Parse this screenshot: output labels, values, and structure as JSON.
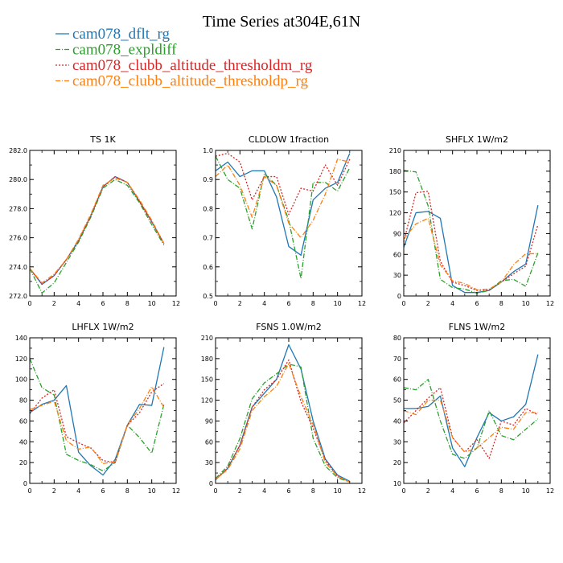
{
  "title": "Time Series at304E,61N",
  "legend": [
    {
      "label": "cam078_dflt_rg",
      "color": "#1f77b4",
      "dash": "solid"
    },
    {
      "label": "cam078_expldiff",
      "color": "#2ca02c",
      "dash": "dashdot"
    },
    {
      "label": "cam078_clubb_altitude_thresholdm_rg",
      "color": "#d62728",
      "dash": "dot"
    },
    {
      "label": "cam078_clubb_altitude_thresholdp_rg",
      "color": "#ff7f0e",
      "dash": "dashdot"
    }
  ],
  "chart_data": [
    {
      "type": "line",
      "title": "TS   1K",
      "xlim": [
        0,
        12
      ],
      "xticks": [
        0,
        2,
        4,
        6,
        8,
        10,
        12
      ],
      "ylim": [
        272,
        282
      ],
      "yticks": [
        "272.0",
        "274.0",
        "276.0",
        "278.0",
        "280.0",
        "282.0"
      ],
      "x": [
        0,
        1,
        2,
        3,
        4,
        5,
        6,
        7,
        8,
        9,
        10,
        11
      ],
      "series": [
        {
          "name": "cam078_dflt_rg",
          "values": [
            273.9,
            272.8,
            273.4,
            274.5,
            275.8,
            277.5,
            279.5,
            280.2,
            279.8,
            278.5,
            277.1,
            275.6
          ]
        },
        {
          "name": "cam078_expldiff",
          "values": [
            273.9,
            272.2,
            272.9,
            274.3,
            275.7,
            277.4,
            279.4,
            280.0,
            279.6,
            278.4,
            276.9,
            275.5
          ]
        },
        {
          "name": "cam078_clubb_altitude_thresholdm_rg",
          "values": [
            273.9,
            272.8,
            273.4,
            274.5,
            275.8,
            277.5,
            279.5,
            280.2,
            279.8,
            278.5,
            277.1,
            275.6
          ]
        },
        {
          "name": "cam078_clubb_altitude_thresholdp_rg",
          "values": [
            273.9,
            272.9,
            273.5,
            274.5,
            275.9,
            277.6,
            279.6,
            280.1,
            279.8,
            278.6,
            277.2,
            275.6
          ]
        }
      ]
    },
    {
      "type": "line",
      "title": "CLDLOW   1fraction",
      "xlim": [
        0,
        12
      ],
      "xticks": [
        0,
        2,
        4,
        6,
        8,
        10,
        12
      ],
      "ylim": [
        0.5,
        1.0
      ],
      "yticks": [
        "0.5",
        "0.6",
        "0.7",
        "0.8",
        "0.9",
        "1.0"
      ],
      "x": [
        0,
        1,
        2,
        3,
        4,
        5,
        6,
        7,
        8,
        9,
        10,
        11
      ],
      "series": [
        {
          "name": "cam078_dflt_rg",
          "values": [
            0.93,
            0.96,
            0.91,
            0.93,
            0.93,
            0.84,
            0.67,
            0.64,
            0.83,
            0.87,
            0.89,
            0.99
          ]
        },
        {
          "name": "cam078_expldiff",
          "values": [
            0.98,
            0.9,
            0.87,
            0.73,
            0.92,
            0.88,
            0.76,
            0.56,
            0.89,
            0.89,
            0.86,
            0.94
          ]
        },
        {
          "name": "cam078_clubb_altitude_thresholdm_rg",
          "values": [
            0.98,
            0.99,
            0.96,
            0.83,
            0.91,
            0.91,
            0.78,
            0.87,
            0.86,
            0.95,
            0.88,
            0.97
          ]
        },
        {
          "name": "cam078_clubb_altitude_thresholdp_rg",
          "values": [
            0.91,
            0.95,
            0.88,
            0.77,
            0.91,
            0.88,
            0.75,
            0.7,
            0.76,
            0.85,
            0.97,
            0.96
          ]
        }
      ]
    },
    {
      "type": "line",
      "title": "SHFLX   1W/m2",
      "xlim": [
        0,
        12
      ],
      "xticks": [
        0,
        2,
        4,
        6,
        8,
        10,
        12
      ],
      "ylim": [
        0,
        210
      ],
      "yticks": [
        "0",
        "30",
        "60",
        "90",
        "120",
        "150",
        "180",
        "210"
      ],
      "x": [
        0,
        1,
        2,
        3,
        4,
        5,
        6,
        7,
        8,
        9,
        10,
        11
      ],
      "series": [
        {
          "name": "cam078_dflt_rg",
          "values": [
            70,
            120,
            122,
            112,
            15,
            5,
            5,
            8,
            20,
            35,
            46,
            131
          ]
        },
        {
          "name": "cam078_expldiff",
          "values": [
            181,
            179,
            130,
            24,
            12,
            10,
            4,
            8,
            22,
            24,
            14,
            62
          ]
        },
        {
          "name": "cam078_clubb_altitude_thresholdm_rg",
          "values": [
            78,
            149,
            151,
            50,
            20,
            15,
            8,
            9,
            20,
            32,
            43,
            103
          ]
        },
        {
          "name": "cam078_clubb_altitude_thresholdp_rg",
          "values": [
            82,
            104,
            112,
            45,
            22,
            18,
            9,
            10,
            20,
            45,
            61,
            61
          ]
        }
      ]
    },
    {
      "type": "line",
      "title": "LHFLX   1W/m2",
      "xlim": [
        0,
        12
      ],
      "xticks": [
        0,
        2,
        4,
        6,
        8,
        10,
        12
      ],
      "ylim": [
        0,
        140
      ],
      "yticks": [
        "0",
        "20",
        "40",
        "60",
        "80",
        "100",
        "120",
        "140"
      ],
      "x": [
        0,
        1,
        2,
        3,
        4,
        5,
        6,
        7,
        8,
        9,
        10,
        11
      ],
      "series": [
        {
          "name": "cam078_dflt_rg",
          "values": [
            68,
            76,
            80,
            94,
            30,
            17,
            8,
            23,
            56,
            76,
            75,
            131
          ]
        },
        {
          "name": "cam078_expldiff",
          "values": [
            120,
            92,
            85,
            28,
            22,
            18,
            12,
            20,
            56,
            44,
            29,
            76
          ]
        },
        {
          "name": "cam078_clubb_altitude_thresholdm_rg",
          "values": [
            67,
            82,
            90,
            45,
            39,
            34,
            22,
            20,
            56,
            68,
            88,
            96
          ]
        },
        {
          "name": "cam078_clubb_altitude_thresholdp_rg",
          "values": [
            71,
            75,
            79,
            41,
            33,
            35,
            19,
            21,
            56,
            72,
            93,
            73
          ]
        }
      ]
    },
    {
      "type": "line",
      "title": "FSNS   1.0W/m2",
      "xlim": [
        0,
        12
      ],
      "xticks": [
        0,
        2,
        4,
        6,
        8,
        10,
        12
      ],
      "ylim": [
        0,
        210
      ],
      "yticks": [
        "0",
        "30",
        "60",
        "90",
        "120",
        "150",
        "180",
        "210"
      ],
      "x": [
        0,
        1,
        2,
        3,
        4,
        5,
        6,
        7,
        8,
        9,
        10,
        11
      ],
      "series": [
        {
          "name": "cam078_dflt_rg",
          "values": [
            5,
            22,
            55,
            110,
            130,
            150,
            200,
            165,
            90,
            35,
            12,
            3
          ]
        },
        {
          "name": "cam078_expldiff",
          "values": [
            7,
            25,
            65,
            122,
            145,
            158,
            172,
            168,
            65,
            25,
            8,
            2
          ]
        },
        {
          "name": "cam078_clubb_altitude_thresholdm_rg",
          "values": [
            6,
            22,
            55,
            110,
            135,
            150,
            178,
            118,
            80,
            33,
            10,
            2
          ]
        },
        {
          "name": "cam078_clubb_altitude_thresholdp_rg",
          "values": [
            6,
            20,
            50,
            105,
            125,
            140,
            173,
            125,
            85,
            30,
            10,
            2
          ]
        }
      ]
    },
    {
      "type": "line",
      "title": "FLNS   1W/m2",
      "xlim": [
        0,
        12
      ],
      "xticks": [
        0,
        2,
        4,
        6,
        8,
        10,
        12
      ],
      "ylim": [
        10,
        80
      ],
      "yticks": [
        "10",
        "20",
        "30",
        "40",
        "50",
        "60",
        "70",
        "80"
      ],
      "x": [
        0,
        1,
        2,
        3,
        4,
        5,
        6,
        7,
        8,
        9,
        10,
        11
      ],
      "series": [
        {
          "name": "cam078_dflt_rg",
          "values": [
            46,
            46,
            47,
            52,
            27,
            18,
            32,
            44,
            40,
            42,
            48,
            72
          ]
        },
        {
          "name": "cam078_expldiff",
          "values": [
            56,
            55,
            60,
            40,
            24,
            22,
            27,
            45,
            33,
            31,
            36,
            41
          ]
        },
        {
          "name": "cam078_clubb_altitude_thresholdm_rg",
          "values": [
            39,
            45,
            51,
            56,
            32,
            25,
            31,
            22,
            40,
            38,
            46,
            43
          ]
        },
        {
          "name": "cam078_clubb_altitude_thresholdp_rg",
          "values": [
            45,
            43,
            50,
            50,
            32,
            25,
            27,
            32,
            37,
            36,
            44,
            44
          ]
        }
      ]
    }
  ]
}
